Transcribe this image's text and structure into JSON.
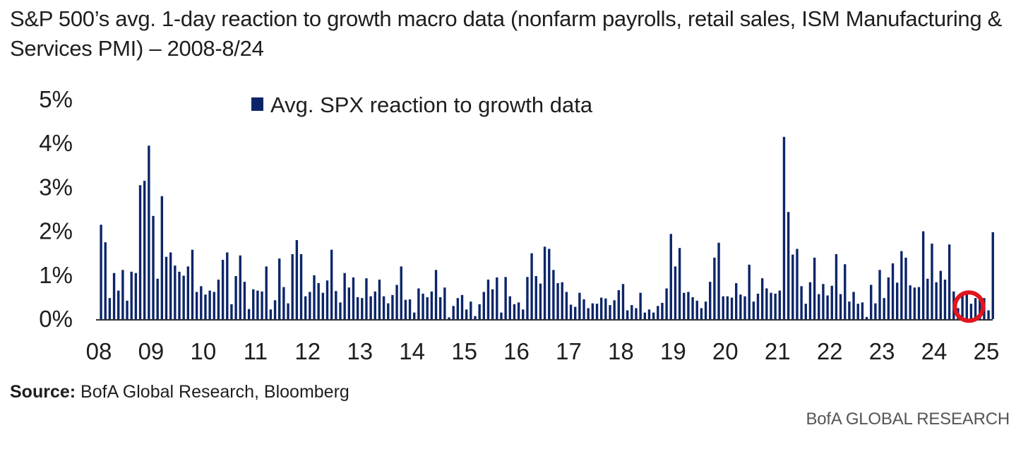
{
  "title": "S&P 500’s avg. 1-day reaction to growth macro data (nonfarm payrolls, retail sales, ISM Manufacturing & Services PMI) – 2008-8/24",
  "source": {
    "label": "Source:",
    "text": " BofA Global Research, Bloomberg"
  },
  "brand": "BofA GLOBAL RESEARCH",
  "colors": {
    "bar": "#0c2569",
    "axis": "#333333",
    "highlight": "#e2151e"
  },
  "chart_data": {
    "type": "bar",
    "title": "",
    "xlabel": "",
    "ylabel": "",
    "ylim": [
      0,
      5
    ],
    "xlim": [
      2008,
      2025
    ],
    "y_ticks": [
      "0%",
      "1%",
      "2%",
      "3%",
      "4%",
      "5%"
    ],
    "x_ticks": [
      "08",
      "09",
      "10",
      "11",
      "12",
      "13",
      "14",
      "15",
      "16",
      "17",
      "18",
      "19",
      "20",
      "21",
      "22",
      "23",
      "24",
      "25"
    ],
    "legend": {
      "label": "Avg. SPX reaction to growth data",
      "placement": "top-center"
    },
    "highlight": {
      "marker": "red-circle",
      "index": 200
    },
    "series": [
      {
        "name": "Avg. SPX reaction to growth data",
        "start": "2008-01",
        "frequency": "monthly",
        "values": [
          2.15,
          1.75,
          0.48,
          1.05,
          0.65,
          1.12,
          0.42,
          1.08,
          1.05,
          3.05,
          3.15,
          3.95,
          2.35,
          0.92,
          2.8,
          1.42,
          1.52,
          1.22,
          1.08,
          0.99,
          1.2,
          1.58,
          0.62,
          0.75,
          0.56,
          0.65,
          0.62,
          0.9,
          1.35,
          1.52,
          0.34,
          0.98,
          1.45,
          0.85,
          0.23,
          0.68,
          0.65,
          0.63,
          1.2,
          0.22,
          0.43,
          1.38,
          0.73,
          0.36,
          1.48,
          1.8,
          1.48,
          0.52,
          0.62,
          1.0,
          0.82,
          0.6,
          0.88,
          1.58,
          0.64,
          0.38,
          1.05,
          0.72,
          0.95,
          0.5,
          0.48,
          0.93,
          0.52,
          0.63,
          0.9,
          0.52,
          0.36,
          0.55,
          0.78,
          1.2,
          0.44,
          0.45,
          0.15,
          0.7,
          0.58,
          0.5,
          0.63,
          1.12,
          0.5,
          0.72,
          0.04,
          0.3,
          0.48,
          0.55,
          0.22,
          0.4,
          0.07,
          0.34,
          0.62,
          0.9,
          0.68,
          0.95,
          0.15,
          0.96,
          0.52,
          0.34,
          0.38,
          0.22,
          0.96,
          1.5,
          0.98,
          0.81,
          1.65,
          1.6,
          1.12,
          0.82,
          0.84,
          0.62,
          0.33,
          0.28,
          0.6,
          0.45,
          0.25,
          0.36,
          0.35,
          0.49,
          0.47,
          0.32,
          0.43,
          0.66,
          0.8,
          0.2,
          0.32,
          0.25,
          0.6,
          0.15,
          0.22,
          0.15,
          0.3,
          0.37,
          0.7,
          1.94,
          1.2,
          1.62,
          0.6,
          0.62,
          0.5,
          0.42,
          0.25,
          0.4,
          0.85,
          1.4,
          1.74,
          0.52,
          0.52,
          0.49,
          0.82,
          0.56,
          0.52,
          1.24,
          0.4,
          0.58,
          0.93,
          0.7,
          0.6,
          0.58,
          0.65,
          4.15,
          2.44,
          1.47,
          1.6,
          0.75,
          0.35,
          0.84,
          1.4,
          0.57,
          0.8,
          0.54,
          0.76,
          1.48,
          0.57,
          1.25,
          0.4,
          0.62,
          0.35,
          0.38,
          0.05,
          0.78,
          0.36,
          1.12,
          0.48,
          0.95,
          1.27,
          0.83,
          1.55,
          1.4,
          0.77,
          0.72,
          0.73,
          2.0,
          0.92,
          1.72,
          0.84,
          1.1,
          0.9,
          1.7,
          0.63,
          0.25,
          0.59,
          0.62,
          0.35,
          0.48,
          0.45,
          0.48,
          0.2,
          1.98
        ]
      }
    ]
  }
}
